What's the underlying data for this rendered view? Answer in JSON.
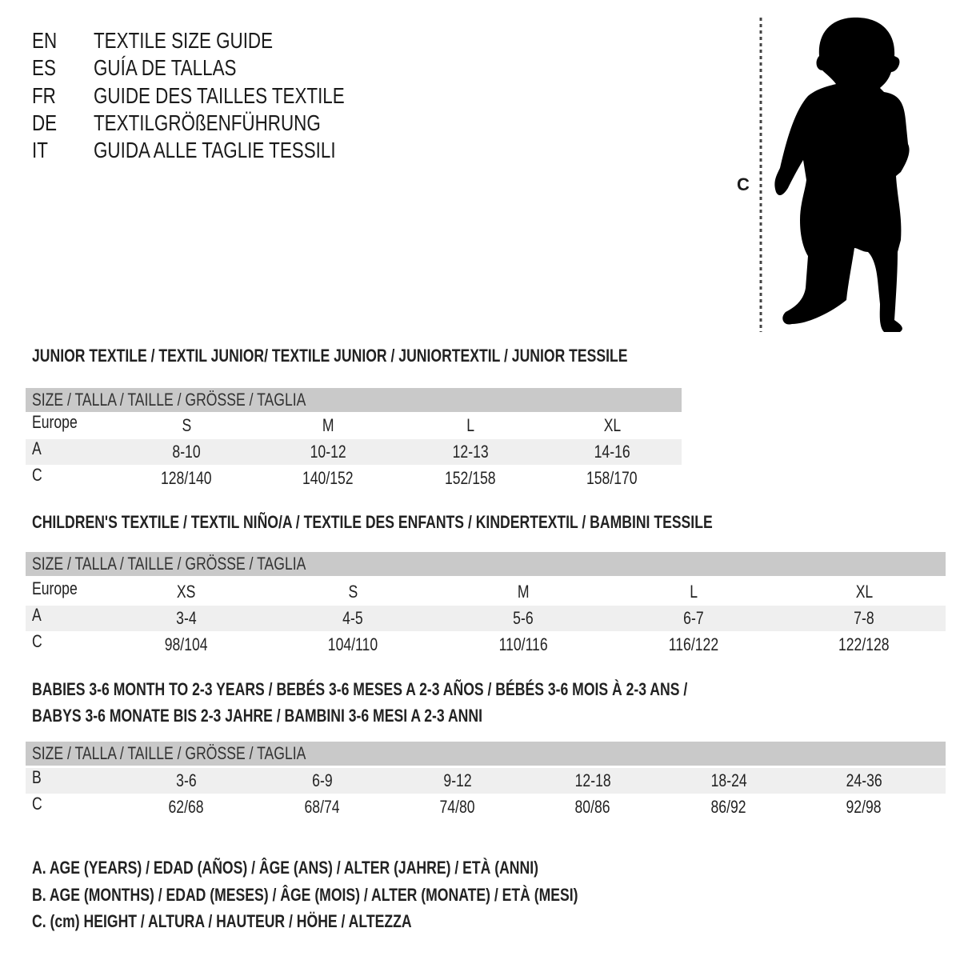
{
  "titles": [
    {
      "code": "EN",
      "text": "TEXTILE SIZE GUIDE"
    },
    {
      "code": "ES",
      "text": "GUÍA DE TALLAS"
    },
    {
      "code": "FR",
      "text": "GUIDE DES TAILLES TEXTILE"
    },
    {
      "code": "DE",
      "text": "TEXTILGRÖßENFÜHRUNG"
    },
    {
      "code": "IT",
      "text": "GUIDA ALLE TAGLIE TESSILI"
    }
  ],
  "figure": {
    "measure_label": "C",
    "silhouette_color": "#000000"
  },
  "colors": {
    "header_bg": "#c9c9c9",
    "stripe_bg": "#efefef",
    "text": "#1a1a1a"
  },
  "tables": [
    {
      "heading": [
        "JUNIOR TEXTILE / TEXTIL JUNIOR/ TEXTILE JUNIOR / JUNIORTEXTIL / JUNIOR TESSILE"
      ],
      "header": "SIZE / TALLA / TAILLE / GRÖSSE / TAGLIA",
      "rows": [
        {
          "label": "Europe",
          "values": [
            "S",
            "M",
            "L",
            "XL"
          ]
        },
        {
          "label": "A",
          "values": [
            "8-10",
            "10-12",
            "12-13",
            "14-16"
          ]
        },
        {
          "label": "C",
          "values": [
            "128/140",
            "140/152",
            "152/158",
            "158/170"
          ]
        }
      ]
    },
    {
      "heading": [
        "CHILDREN'S TEXTILE / TEXTIL NIÑO/A / TEXTILE DES ENFANTS / KINDERTEXTIL / BAMBINI TESSILE"
      ],
      "header": "SIZE / TALLA / TAILLE / GRÖSSE / TAGLIA",
      "rows": [
        {
          "label": "Europe",
          "values": [
            "XS",
            "S",
            "M",
            "L",
            "XL"
          ]
        },
        {
          "label": "A",
          "values": [
            "3-4",
            "4-5",
            "5-6",
            "6-7",
            "7-8"
          ]
        },
        {
          "label": "C",
          "values": [
            "98/104",
            "104/110",
            "110/116",
            "116/122",
            "122/128"
          ]
        }
      ]
    },
    {
      "heading": [
        "BABIES 3-6 MONTH TO 2-3 YEARS / BEBÉS 3-6 MESES A 2-3 AÑOS / BÉBÉS 3-6 MOIS À 2-3 ANS /",
        "BABYS 3-6 MONATE BIS 2-3 JAHRE / BAMBINI 3-6 MESI A 2-3 ANNI"
      ],
      "header": "SIZE / TALLA / TAILLE / GRÖSSE / TAGLIA",
      "rows": [
        {
          "label": "B",
          "values": [
            "3-6",
            "6-9",
            "9-12",
            "12-18",
            "18-24",
            "24-36"
          ]
        },
        {
          "label": "C",
          "values": [
            "62/68",
            "68/74",
            "74/80",
            "80/86",
            "86/92",
            "92/98"
          ]
        }
      ]
    }
  ],
  "legend": [
    "A. AGE (YEARS) / EDAD (AÑOS) / ÂGE (ANS) / ALTER (JAHRE) / ETÀ (ANNI)",
    "B. AGE (MONTHS) / EDAD (MESES) / ÂGE (MOIS) / ALTER (MONATE) / ETÀ (MESI)",
    "C. (cm) HEIGHT / ALTURA / HAUTEUR / HÖHE / ALTEZZA"
  ]
}
